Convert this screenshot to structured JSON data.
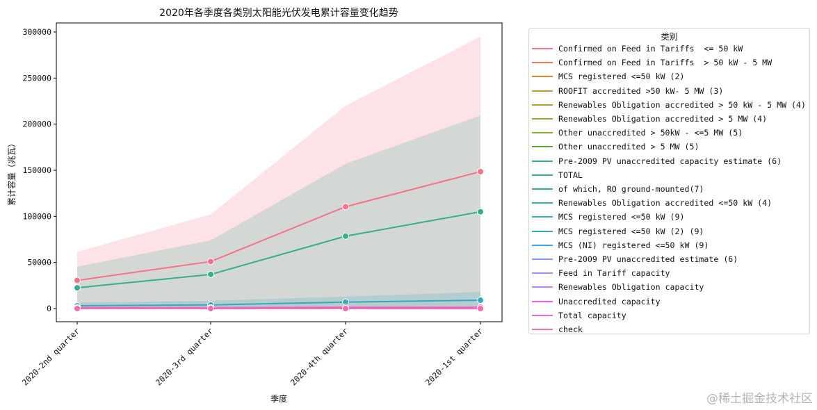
{
  "chart_data": {
    "type": "line",
    "title": "2020年各季度各类别太阳能光伏发电累计容量变化趋势",
    "xlabel": "季度",
    "ylabel": "累计容量（兆瓦）",
    "categories": [
      "2020-2nd quarter",
      "2020-3rd quarter",
      "2020-4th quarter",
      "2020-1st quarter"
    ],
    "ylim": [
      -15000,
      310000
    ],
    "yticks": [
      0,
      50000,
      100000,
      150000,
      200000,
      250000,
      300000
    ],
    "ytick_labels": [
      "0",
      "50000",
      "100000",
      "150000",
      "200000",
      "250000",
      "300000"
    ],
    "grid": false,
    "legend_title": "类别",
    "legend_placement": "outside right",
    "markers": "circle",
    "series": [
      {
        "name": "Confirmed on Feed in Tariffs  <= 50 kW",
        "color": "#f77189",
        "values": [
          30500,
          51000,
          110500,
          148500
        ],
        "ci": [
          [
            0,
            61500
          ],
          [
            0,
            102000
          ],
          [
            0,
            220000
          ],
          [
            0,
            295000
          ]
        ]
      },
      {
        "name": "Confirmed on Feed in Tariffs  > 50 kW - 5 MW",
        "color": "#f67752"
      },
      {
        "name": "MCS registered <=50 kW (2)",
        "color": "#dc8932"
      },
      {
        "name": "ROOFIT accredited >50 kW- 5 MW (3)",
        "color": "#c79432"
      },
      {
        "name": "Renewables Obligation accredited > 50 kW - 5 MW (4)",
        "color": "#b29b31"
      },
      {
        "name": "Renewables Obligation accredited > 5 MW (4)",
        "color": "#9ca331"
      },
      {
        "name": "Other unaccredited > 50kW - <=5 MW (5)",
        "color": "#80aa31"
      },
      {
        "name": "Other unaccredited > 5 MW (5)",
        "color": "#4fb031"
      },
      {
        "name": "Pre-2009 PV unaccredited capacity estimate (6)",
        "color": "#33b07a"
      },
      {
        "name": "TOTAL",
        "color": "#34ae8d",
        "values": [
          22500,
          37000,
          78500,
          105000
        ],
        "ci": [
          [
            0,
            45500
          ],
          [
            0,
            74000
          ],
          [
            0,
            157000
          ],
          [
            0,
            209500
          ]
        ]
      },
      {
        "name": "of which, RO ground-mounted(7)",
        "color": "#35ac9b"
      },
      {
        "name": "Renewables Obligation accredited <=50 kW (4)",
        "color": "#36aba7"
      },
      {
        "name": "MCS registered <=50 kW (9)",
        "color": "#37aab3"
      },
      {
        "name": "MCS registered <=50 kW (2) (9)",
        "color": "#38a8bf",
        "values": [
          3000,
          4000,
          7000,
          9000
        ],
        "ci": [
          [
            0,
            6500
          ],
          [
            0,
            8500
          ],
          [
            0,
            13000
          ],
          [
            0,
            18000
          ]
        ]
      },
      {
        "name": "MCS (NI) registered <=50 kW (9)",
        "color": "#3ba3ec"
      },
      {
        "name": "Pre-2009 PV unaccredited estimate (6)",
        "color": "#8197f4"
      },
      {
        "name": "Feed in Tariff capacity",
        "color": "#a48cf4"
      },
      {
        "name": "Renewables Obligation capacity",
        "color": "#c77ff4"
      },
      {
        "name": "Unaccredited capacity",
        "color": "#f45cf2"
      },
      {
        "name": "Total capacity",
        "color": "#f565cc",
        "values": [
          1000,
          1000,
          1500,
          1500
        ]
      },
      {
        "name": "check",
        "color": "#f66bad",
        "values": [
          0,
          0,
          0,
          0
        ]
      }
    ]
  },
  "watermark": "@稀土掘金技术社区"
}
